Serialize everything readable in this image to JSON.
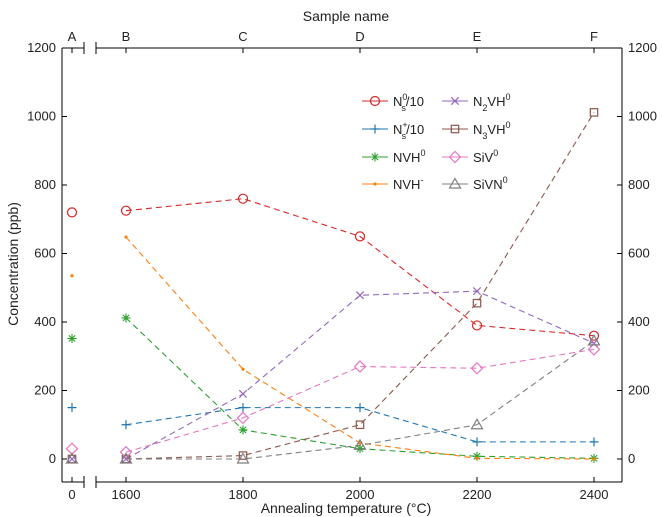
{
  "chart_data": {
    "type": "line",
    "xlabel": "Annealing temperature (°C)",
    "ylabel": "Concentration (ppb)",
    "top_xlabel": "Sample name",
    "ylim": [
      0,
      1200
    ],
    "y_ticks": [
      "0",
      "200",
      "400",
      "600",
      "800",
      "1000",
      "1200"
    ],
    "x_ticks": [
      "0",
      "1600",
      "1800",
      "2000",
      "2200",
      "2400"
    ],
    "top_ticks": [
      "A",
      "B",
      "C",
      "D",
      "E",
      "F"
    ],
    "categories": [
      "0",
      "1600",
      "1800",
      "2000",
      "2200",
      "2400"
    ],
    "legend_placement": "top-right",
    "series": [
      {
        "key": "ns0",
        "legend": {
          "base": "N",
          "sub": "s",
          "sup": "0",
          "suffix": "/10"
        },
        "color": "#d62728",
        "marker": "circle",
        "values": [
          720,
          725,
          760,
          650,
          390,
          360
        ]
      },
      {
        "key": "nsplus",
        "legend": {
          "base": "N",
          "sub": "s",
          "sup": "+",
          "suffix": "/10"
        },
        "color": "#1f77b4",
        "marker": "plus",
        "values": [
          150,
          100,
          150,
          150,
          50,
          50
        ]
      },
      {
        "key": "nvh0",
        "legend": {
          "base": "NVH",
          "sub": "",
          "sup": "0",
          "suffix": ""
        },
        "color": "#2ca02c",
        "marker": "star",
        "values": [
          352,
          412,
          85,
          30,
          8,
          2
        ]
      },
      {
        "key": "nvhminus",
        "legend": {
          "base": "NVH",
          "sub": "",
          "sup": "-",
          "suffix": ""
        },
        "color": "#ff7f0e",
        "marker": "dot",
        "values": [
          535,
          648,
          262,
          47,
          2,
          0
        ]
      },
      {
        "key": "n2vh0",
        "legend": {
          "base": "N",
          "sub": "2",
          "sup": "",
          "suffix": "VH",
          "sup2": "0"
        },
        "color": "#9467bd",
        "marker": "x",
        "values": [
          0,
          0,
          190,
          478,
          490,
          338
        ]
      },
      {
        "key": "n3vh0",
        "legend": {
          "base": "N",
          "sub": "3",
          "sup": "",
          "suffix": "VH",
          "sup2": "0"
        },
        "color": "#8c564b",
        "marker": "square",
        "values": [
          0,
          0,
          10,
          100,
          455,
          1012
        ]
      },
      {
        "key": "siv0",
        "legend": {
          "base": "SiV",
          "sub": "",
          "sup": "0",
          "suffix": ""
        },
        "color": "#e377c2",
        "marker": "diamond",
        "values": [
          30,
          20,
          120,
          270,
          265,
          320
        ]
      },
      {
        "key": "sivn0",
        "legend": {
          "base": "SiVN",
          "sub": "",
          "sup": "0",
          "suffix": ""
        },
        "color": "#7f7f7f",
        "marker": "triangle",
        "values": [
          0,
          0,
          0,
          40,
          100,
          345
        ]
      }
    ]
  }
}
